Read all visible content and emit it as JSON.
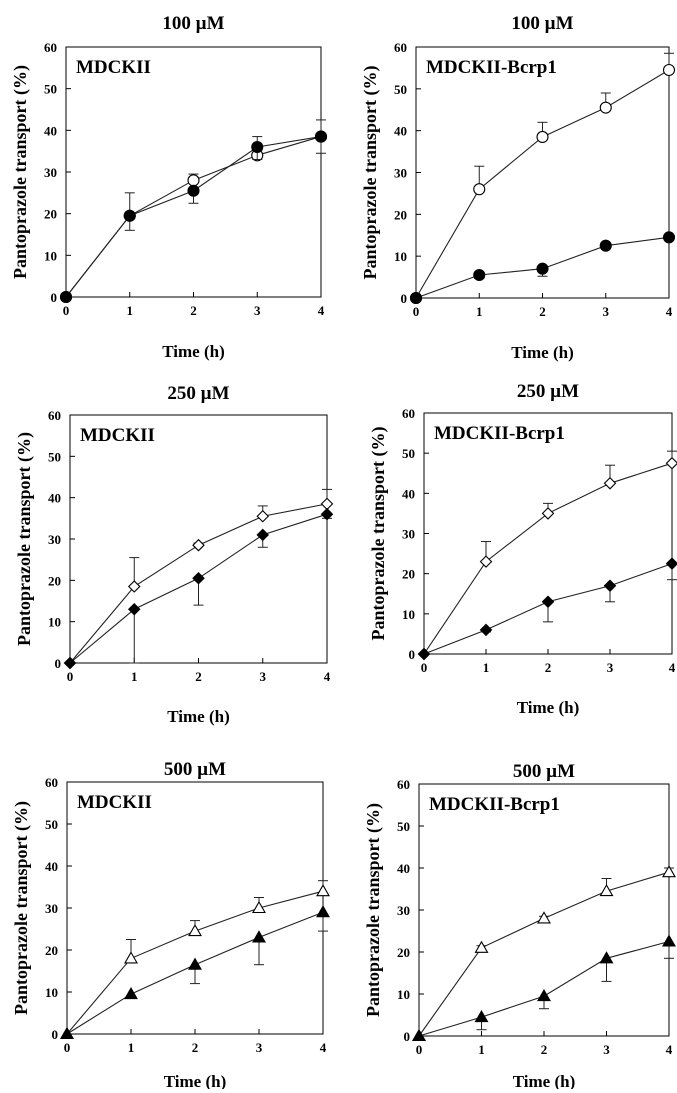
{
  "chart_data": [
    {
      "type": "line",
      "title": "100 µM",
      "label": "MDCKII",
      "xlabel": "Time (h)",
      "ylabel": "Pantoprazole transport (%)",
      "xlim": [
        0,
        4
      ],
      "ylim": [
        0,
        60
      ],
      "xticks": [
        "0",
        "1",
        "2",
        "3",
        "4"
      ],
      "yticks": [
        "0",
        "10",
        "20",
        "30",
        "40",
        "50",
        "60"
      ],
      "marker_shape": "circle",
      "x": [
        0,
        1,
        2,
        3,
        4
      ],
      "series": [
        {
          "marker": "open",
          "values": [
            0,
            19.5,
            28,
            34,
            38.5
          ],
          "errors": [
            0,
            5.5,
            1.5,
            4.5,
            4
          ]
        },
        {
          "marker": "filled",
          "values": [
            0,
            19.5,
            25.5,
            36,
            38.5
          ],
          "errors": [
            0,
            3.5,
            3,
            3,
            4
          ]
        }
      ]
    },
    {
      "type": "line",
      "title": "100 µM",
      "label": "MDCKII-Bcrp1",
      "xlabel": "Time (h)",
      "ylabel": "Pantoprazole transport (%)",
      "xlim": [
        0,
        4
      ],
      "ylim": [
        0,
        60
      ],
      "xticks": [
        "0",
        "1",
        "2",
        "3",
        "4"
      ],
      "yticks": [
        "0",
        "10",
        "20",
        "30",
        "40",
        "50",
        "60"
      ],
      "marker_shape": "circle",
      "x": [
        0,
        1,
        2,
        3,
        4
      ],
      "series": [
        {
          "marker": "open",
          "values": [
            0,
            26,
            38.5,
            45.5,
            54.5
          ],
          "errors": [
            0,
            5.5,
            3.5,
            3.5,
            4
          ]
        },
        {
          "marker": "filled",
          "values": [
            0,
            5.5,
            7,
            12.5,
            14.5
          ],
          "errors": [
            0,
            0.8,
            1.8,
            0.6,
            0.6
          ]
        }
      ]
    },
    {
      "type": "line",
      "title": "250 µM",
      "label": "MDCKII",
      "xlabel": "Time (h)",
      "ylabel": "Pantoprazole transport (%)",
      "xlim": [
        0,
        4
      ],
      "ylim": [
        0,
        60
      ],
      "xticks": [
        "0",
        "1",
        "2",
        "3",
        "4"
      ],
      "yticks": [
        "0",
        "10",
        "20",
        "30",
        "40",
        "50",
        "60"
      ],
      "marker_shape": "diamond",
      "x": [
        0,
        1,
        2,
        3,
        4
      ],
      "series": [
        {
          "marker": "open",
          "values": [
            0,
            18.5,
            28.5,
            35.5,
            38.5
          ],
          "errors": [
            0,
            7,
            0.5,
            2.5,
            3.5
          ]
        },
        {
          "marker": "filled",
          "values": [
            0,
            13,
            20.5,
            31,
            36
          ],
          "errors": [
            0,
            13,
            6.5,
            3,
            1
          ]
        }
      ]
    },
    {
      "type": "line",
      "title": "250 µM",
      "label": "MDCKII-Bcrp1",
      "xlabel": "Time (h)",
      "ylabel": "Pantoprazole transport (%)",
      "xlim": [
        0,
        4
      ],
      "ylim": [
        0,
        60
      ],
      "xticks": [
        "0",
        "1",
        "2",
        "3",
        "4"
      ],
      "yticks": [
        "0",
        "10",
        "20",
        "30",
        "40",
        "50",
        "60"
      ],
      "marker_shape": "diamond",
      "x": [
        0,
        1,
        2,
        3,
        4
      ],
      "series": [
        {
          "marker": "open",
          "values": [
            0,
            23,
            35,
            42.5,
            47.5
          ],
          "errors": [
            0,
            5,
            2.5,
            4.5,
            3
          ]
        },
        {
          "marker": "filled",
          "values": [
            0,
            6,
            13,
            17,
            22.5
          ],
          "errors": [
            0,
            0.5,
            5,
            4,
            4
          ]
        }
      ]
    },
    {
      "type": "line",
      "title": "500 µM",
      "label": "MDCKII",
      "xlabel": "Time (h)",
      "ylabel": "Pantoprazole transport (%)",
      "xlim": [
        0,
        4
      ],
      "ylim": [
        0,
        60
      ],
      "xticks": [
        "0",
        "1",
        "2",
        "3",
        "4"
      ],
      "yticks": [
        "0",
        "10",
        "20",
        "30",
        "40",
        "50",
        "60"
      ],
      "marker_shape": "triangle",
      "x": [
        0,
        1,
        2,
        3,
        4
      ],
      "series": [
        {
          "marker": "open",
          "values": [
            0,
            18,
            24.5,
            30,
            34
          ],
          "errors": [
            0,
            4.5,
            2.5,
            2.5,
            2.5
          ]
        },
        {
          "marker": "filled",
          "values": [
            0,
            9.5,
            16.5,
            23,
            29
          ],
          "errors": [
            0,
            0.5,
            4.5,
            6.5,
            4.5
          ]
        }
      ]
    },
    {
      "type": "line",
      "title": "500 µM",
      "label": "MDCKII-Bcrp1",
      "xlabel": "Time (h)",
      "ylabel": "Pantoprazole transport (%)",
      "xlim": [
        0,
        4
      ],
      "ylim": [
        0,
        60
      ],
      "xticks": [
        "0",
        "1",
        "2",
        "3",
        "4"
      ],
      "yticks": [
        "0",
        "10",
        "20",
        "30",
        "40",
        "50",
        "60"
      ],
      "marker_shape": "triangle",
      "x": [
        0,
        1,
        2,
        3,
        4
      ],
      "series": [
        {
          "marker": "open",
          "values": [
            0,
            21,
            28,
            34.5,
            39
          ],
          "errors": [
            0,
            0.5,
            0.5,
            3,
            1
          ]
        },
        {
          "marker": "filled",
          "values": [
            0,
            4.5,
            9.5,
            18.5,
            22.5
          ],
          "errors": [
            0,
            3,
            3,
            5.5,
            4
          ]
        }
      ]
    }
  ]
}
